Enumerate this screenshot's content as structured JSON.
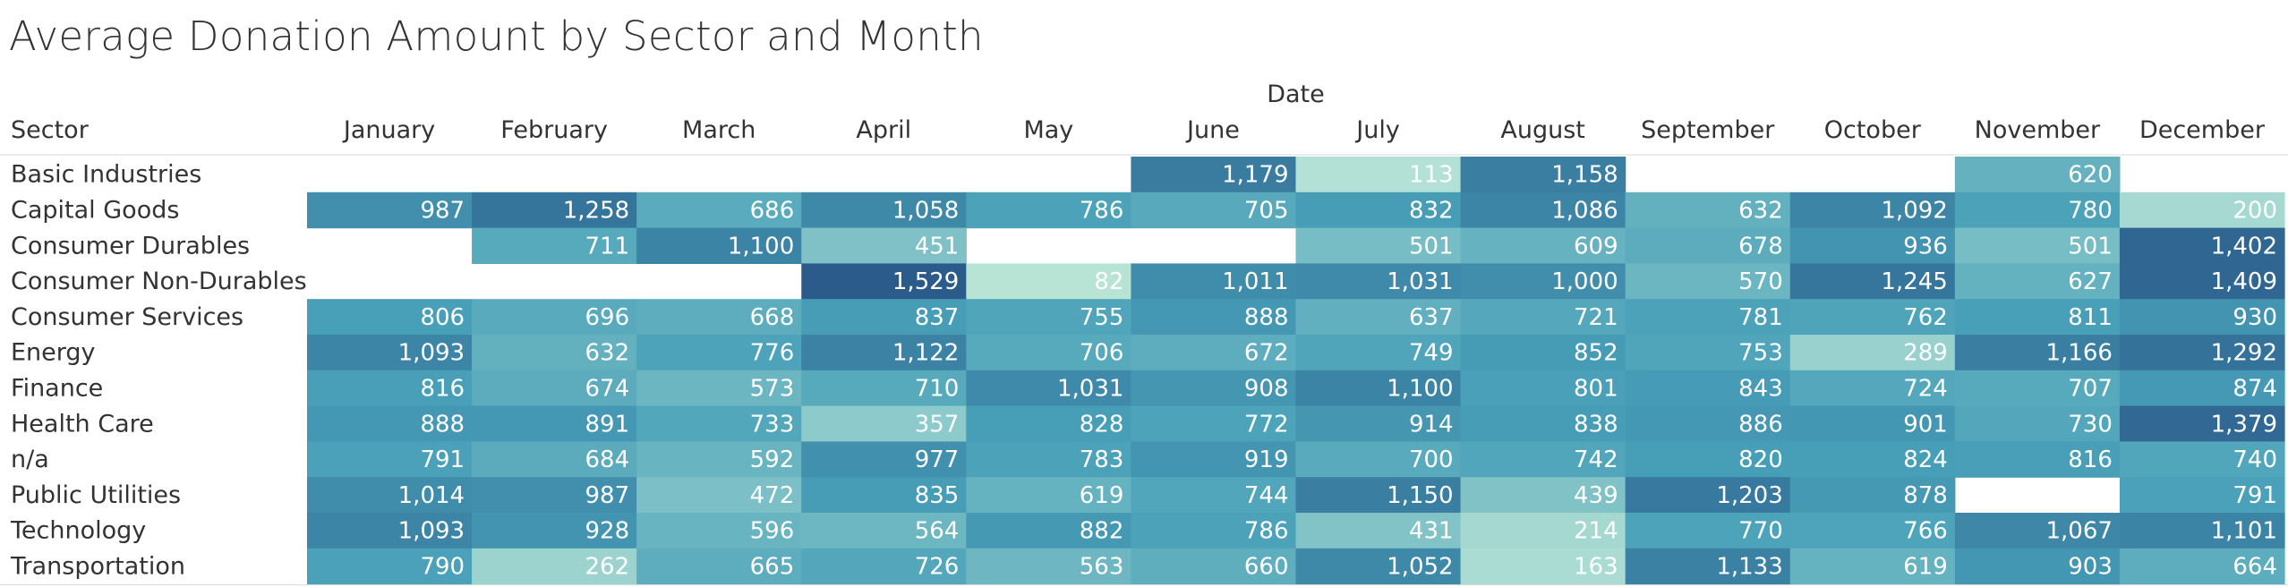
{
  "title": "Average Donation Amount by Sector and Month",
  "chart_data": {
    "type": "heatmap",
    "title": "Average Donation Amount by Sector and Month",
    "column_group_label": "Date",
    "row_header": "Sector",
    "columns": [
      "January",
      "February",
      "March",
      "April",
      "May",
      "June",
      "July",
      "August",
      "September",
      "October",
      "November",
      "December"
    ],
    "rows": [
      "Basic Industries",
      "Capital Goods",
      "Consumer Durables",
      "Consumer Non-Durables",
      "Consumer Services",
      "Energy",
      "Finance",
      "Health Care",
      "n/a",
      "Public Utilities",
      "Technology",
      "Transportation"
    ],
    "values": [
      [
        null,
        null,
        null,
        null,
        null,
        1179,
        113,
        1158,
        null,
        null,
        620,
        null
      ],
      [
        987,
        1258,
        686,
        1058,
        786,
        705,
        832,
        1086,
        632,
        1092,
        780,
        200
      ],
      [
        null,
        711,
        1100,
        451,
        null,
        null,
        501,
        609,
        678,
        936,
        501,
        1402
      ],
      [
        null,
        null,
        null,
        1529,
        82,
        1011,
        1031,
        1000,
        570,
        1245,
        627,
        1409
      ],
      [
        806,
        696,
        668,
        837,
        755,
        888,
        637,
        721,
        781,
        762,
        811,
        930
      ],
      [
        1093,
        632,
        776,
        1122,
        706,
        672,
        749,
        852,
        753,
        289,
        1166,
        1292
      ],
      [
        816,
        674,
        573,
        710,
        1031,
        908,
        1100,
        801,
        843,
        724,
        707,
        874
      ],
      [
        888,
        891,
        733,
        357,
        828,
        772,
        914,
        838,
        886,
        901,
        730,
        1379
      ],
      [
        791,
        684,
        592,
        977,
        783,
        919,
        700,
        742,
        820,
        824,
        816,
        740
      ],
      [
        1014,
        987,
        472,
        835,
        619,
        744,
        1150,
        439,
        1203,
        878,
        null,
        791
      ],
      [
        1093,
        928,
        596,
        564,
        882,
        786,
        431,
        214,
        770,
        766,
        1067,
        1101
      ],
      [
        790,
        262,
        665,
        726,
        563,
        660,
        1052,
        163,
        1133,
        619,
        903,
        664
      ]
    ],
    "color_range": {
      "min": 82,
      "max": 1529,
      "low_color": "#b8e4d6",
      "high_color": "#2b5b8a"
    }
  }
}
